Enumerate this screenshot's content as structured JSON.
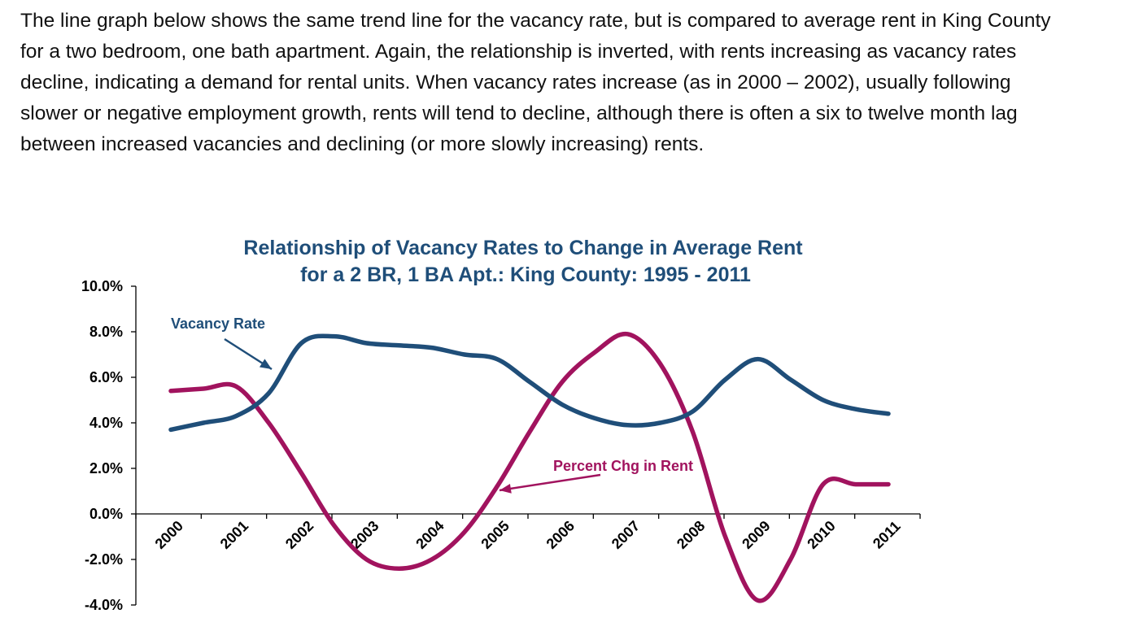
{
  "text": {
    "paragraph": "The line graph below shows the same trend line for the vacancy rate, but is compared to average rent in King County for a two bedroom, one bath apartment. Again, the relationship is inverted, with rents increasing as vacancy rates decline, indicating a demand for rental units. When vacancy rates increase (as in 2000 – 2002), usually following slower or negative  employment growth, rents will tend to decline, although there is often a six to twelve month lag between increased vacancies and declining (or more slowly increasing) rents."
  },
  "chart_data": {
    "type": "line",
    "title": "Relationship of Vacancy  Rates to Change in Average Rent",
    "subtitle": "for a 2 BR, 1 BA Apt.:  King County: 1995 - 2011",
    "ylim": [
      -4.0,
      10.0
    ],
    "yticks": [
      "10.0%",
      "8.0%",
      "6.0%",
      "4.0%",
      "2.0%",
      "0.0%",
      "-2.0%",
      "-4.0%"
    ],
    "ytick_values": [
      10,
      8,
      6,
      4,
      2,
      0,
      -2,
      -4
    ],
    "categories": [
      "2000",
      "2001",
      "2002",
      "2003",
      "2004",
      "2005",
      "2006",
      "2007",
      "2008",
      "2009",
      "2010",
      "2011"
    ],
    "grid": false,
    "series": [
      {
        "name": "Vacancy Rate",
        "color": "#1F4E79",
        "x": [
          0.0,
          0.5,
          1.0,
          1.5,
          2.0,
          2.5,
          3.0,
          3.5,
          4.0,
          4.5,
          5.0,
          5.5,
          6.0,
          6.5,
          7.0,
          7.5,
          8.0,
          8.5,
          9.0,
          9.5,
          10.0,
          10.5,
          11.0
        ],
        "values": [
          3.7,
          4.0,
          4.3,
          5.3,
          7.5,
          7.8,
          7.5,
          7.4,
          7.3,
          7.0,
          6.8,
          5.8,
          4.8,
          4.2,
          3.9,
          4.0,
          4.5,
          5.9,
          6.8,
          5.9,
          5.0,
          4.6,
          4.4
        ]
      },
      {
        "name": "Percent Chg in Rent",
        "color": "#A1135E",
        "x": [
          0.0,
          0.5,
          1.0,
          1.5,
          2.0,
          2.5,
          3.0,
          3.5,
          4.0,
          4.5,
          5.0,
          5.5,
          6.0,
          6.5,
          7.0,
          7.5,
          8.0,
          8.5,
          9.0,
          9.5,
          10.0,
          10.5,
          11.0
        ],
        "values": [
          5.4,
          5.5,
          5.6,
          4.0,
          1.8,
          -0.5,
          -2.0,
          -2.4,
          -2.0,
          -0.8,
          1.2,
          3.6,
          5.8,
          7.1,
          7.9,
          6.6,
          3.6,
          -1.0,
          -3.8,
          -2.0,
          1.3,
          1.3,
          1.3
        ]
      }
    ],
    "annotations": [
      {
        "text": "Vacancy Rate",
        "series": "Vacancy Rate"
      },
      {
        "text": "Percent Chg in Rent",
        "series": "Percent Chg in Rent"
      }
    ]
  }
}
